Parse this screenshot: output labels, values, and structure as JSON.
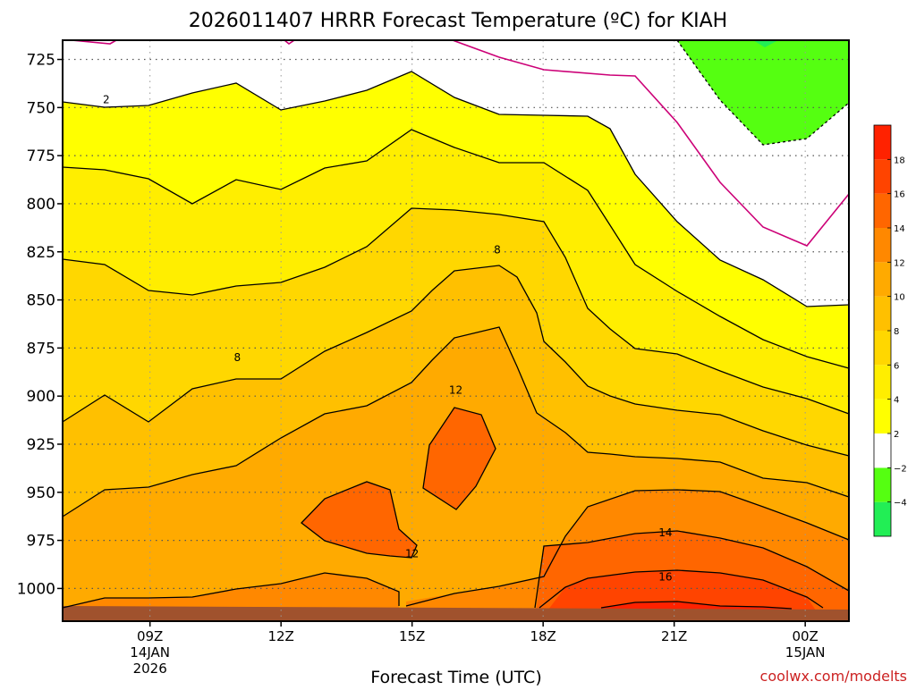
{
  "chart_data": {
    "type": "heatmap",
    "title": "2026011407 HRRR Forecast Temperature (ºC) for KIAH",
    "xlabel": "Forecast Time (UTC)",
    "credit": "coolwx.com/modelts",
    "x_ticks": [
      {
        "value": 9,
        "label": "09Z",
        "sub1": "14JAN",
        "sub2": "2026"
      },
      {
        "value": 12,
        "label": "12Z",
        "sub1": "",
        "sub2": ""
      },
      {
        "value": 15,
        "label": "15Z",
        "sub1": "",
        "sub2": ""
      },
      {
        "value": 18,
        "label": "18Z",
        "sub1": "",
        "sub2": ""
      },
      {
        "value": 21,
        "label": "21Z",
        "sub1": "",
        "sub2": ""
      },
      {
        "value": 24,
        "label": "00Z",
        "sub1": "15JAN",
        "sub2": ""
      }
    ],
    "xlim": [
      7,
      25
    ],
    "y_ticks": [
      {
        "value": 725,
        "label": "725"
      },
      {
        "value": 750,
        "label": "750"
      },
      {
        "value": 775,
        "label": "775"
      },
      {
        "value": 800,
        "label": "800"
      },
      {
        "value": 825,
        "label": "825"
      },
      {
        "value": 850,
        "label": "850"
      },
      {
        "value": 875,
        "label": "875"
      },
      {
        "value": 900,
        "label": "900"
      },
      {
        "value": 925,
        "label": "925"
      },
      {
        "value": 950,
        "label": "950"
      },
      {
        "value": 975,
        "label": "975"
      },
      {
        "value": 1000,
        "label": "1000"
      }
    ],
    "ylim": [
      715,
      1017
    ],
    "grid": true,
    "colorbar": {
      "levels": [
        -6,
        -4,
        -2,
        2,
        4,
        6,
        8,
        10,
        12,
        14,
        16,
        18,
        20
      ],
      "labels": [
        {
          "value": -4,
          "label": "−4"
        },
        {
          "value": -2,
          "label": "−2"
        },
        {
          "value": 2,
          "label": "2"
        },
        {
          "value": 4,
          "label": "4"
        },
        {
          "value": 6,
          "label": "6"
        },
        {
          "value": 8,
          "label": "8"
        },
        {
          "value": 10,
          "label": "10"
        },
        {
          "value": 12,
          "label": "12"
        },
        {
          "value": 14,
          "label": "14"
        },
        {
          "value": 16,
          "label": "16"
        },
        {
          "value": 18,
          "label": "18"
        }
      ],
      "colors": [
        "#22ee55",
        "#55ff11",
        "#ffffff",
        "#ffff00",
        "#ffee00",
        "#ffd700",
        "#ffc000",
        "#ffaa00",
        "#ff8800",
        "#ff6600",
        "#ff4400",
        "#ff2200"
      ]
    },
    "contour_colors": {
      "zero": "#cc0077",
      "line": "#000000",
      "neg": "#000000",
      "ground": "#a0522d"
    },
    "contour_labels": [
      {
        "text": "2",
        "x": 8.0,
        "y": 746
      },
      {
        "text": "8",
        "x": 16.95,
        "y": 824
      },
      {
        "text": "8",
        "x": 11.0,
        "y": 880
      },
      {
        "text": "12",
        "x": 16.0,
        "y": 897
      },
      {
        "text": "12",
        "x": 15.0,
        "y": 982
      },
      {
        "text": "14",
        "x": 20.8,
        "y": 971
      },
      {
        "text": "16",
        "x": 20.8,
        "y": 994
      }
    ]
  }
}
